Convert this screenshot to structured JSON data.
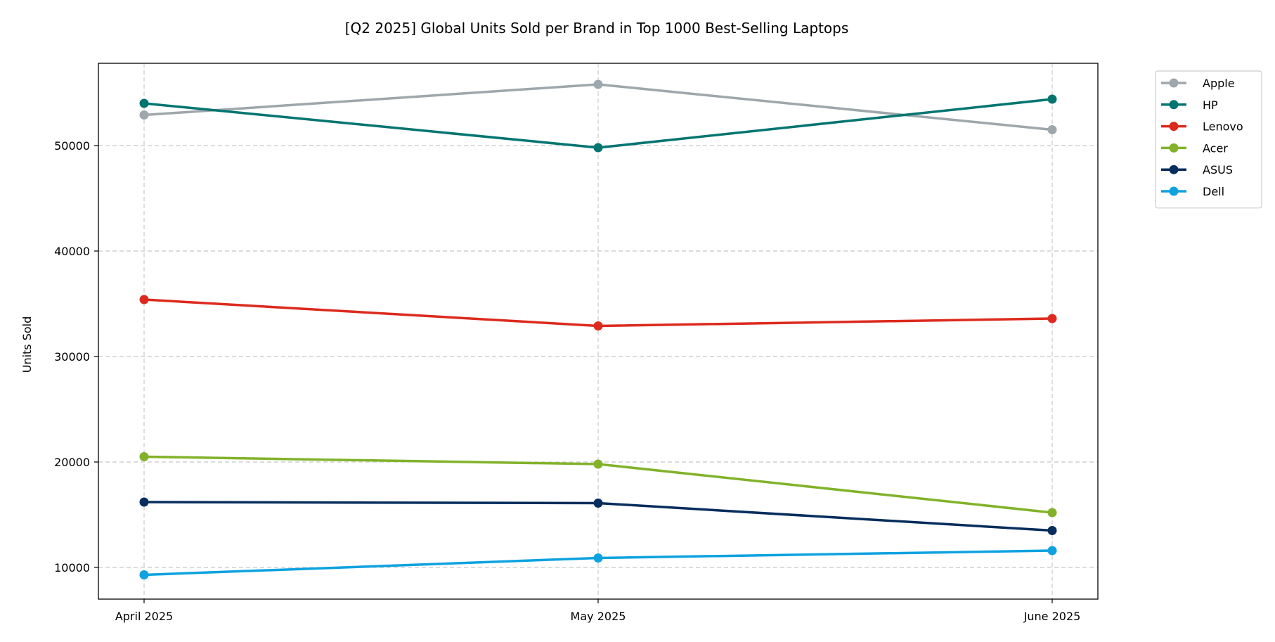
{
  "chart_data": {
    "type": "line",
    "title": "[Q2 2025] Global Units Sold per Brand in Top 1000 Best-Selling Laptops",
    "xlabel": "",
    "ylabel": "Units Sold",
    "categories": [
      "April 2025",
      "May 2025",
      "June 2025"
    ],
    "ylim": [
      7000,
      57800
    ],
    "yticks": [
      10000,
      20000,
      30000,
      40000,
      50000
    ],
    "grid": true,
    "legend_position": "outside-top-right",
    "series": [
      {
        "name": "Apple",
        "color": "#9ea7ab",
        "values": [
          52900,
          55800,
          51500
        ]
      },
      {
        "name": "HP",
        "color": "#037570",
        "values": [
          54000,
          49800,
          54400
        ]
      },
      {
        "name": "Lenovo",
        "color": "#dc2a1e",
        "values": [
          35400,
          32900,
          33600
        ]
      },
      {
        "name": "Acer",
        "color": "#82b22a",
        "values": [
          20500,
          19800,
          15200
        ]
      },
      {
        "name": "ASUS",
        "color": "#062d5c",
        "values": [
          16200,
          16100,
          13500
        ]
      },
      {
        "name": "Dell",
        "color": "#0ea2df",
        "values": [
          9300,
          10900,
          11600
        ]
      }
    ]
  }
}
